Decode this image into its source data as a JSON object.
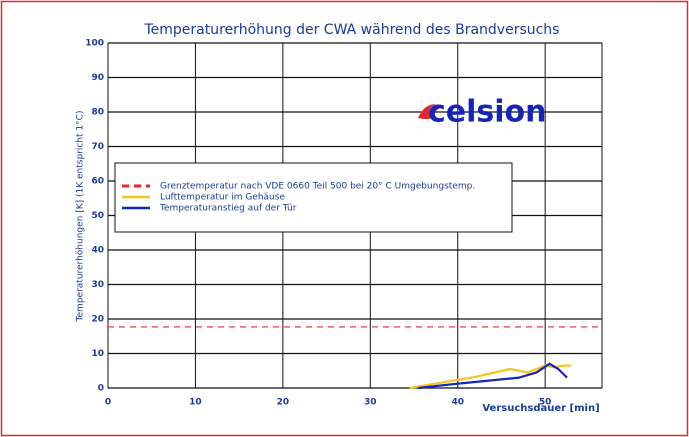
{
  "chart_data": {
    "type": "line",
    "title": "Temperaturerhöhung der CWA während des Brandversuchs",
    "xlabel": "Versuchsdauer [min]",
    "ylabel": "Temperaturerhöhungen [K] (1K entspricht 1°C)",
    "logo": "celsion",
    "xlim": [
      0,
      56.5
    ],
    "ylim": [
      0,
      100
    ],
    "xticks": [
      0,
      10,
      20,
      30,
      40,
      50
    ],
    "yticks": [
      0,
      10,
      20,
      30,
      40,
      50,
      60,
      70,
      80,
      90,
      100
    ],
    "grid": true,
    "legend": "upper left",
    "series": [
      {
        "name": "Grenztemperatur nach VDE 0660 Teil 500 bei 20° C Umgebungstemp.",
        "color": "#e8262a",
        "dashed": true,
        "x": [
          0,
          56.5
        ],
        "values": [
          17.7,
          17.7
        ]
      },
      {
        "name": "Lufttemperatur im Gehäuse",
        "color": "#f5c518",
        "dashed": false,
        "x": [
          34.5,
          38,
          42,
          46,
          48,
          50,
          51,
          52,
          53
        ],
        "values": [
          0,
          1.5,
          3.2,
          5.5,
          4.5,
          6.5,
          6,
          6.5,
          6.5
        ]
      },
      {
        "name": "Temperaturanstieg auf der Tür",
        "color": "#1524b8",
        "dashed": false,
        "x": [
          35.5,
          39,
          43,
          47,
          49,
          50.5,
          51.5,
          52.5
        ],
        "values": [
          0,
          1,
          2,
          3,
          4.5,
          7,
          5.5,
          3
        ]
      }
    ]
  }
}
